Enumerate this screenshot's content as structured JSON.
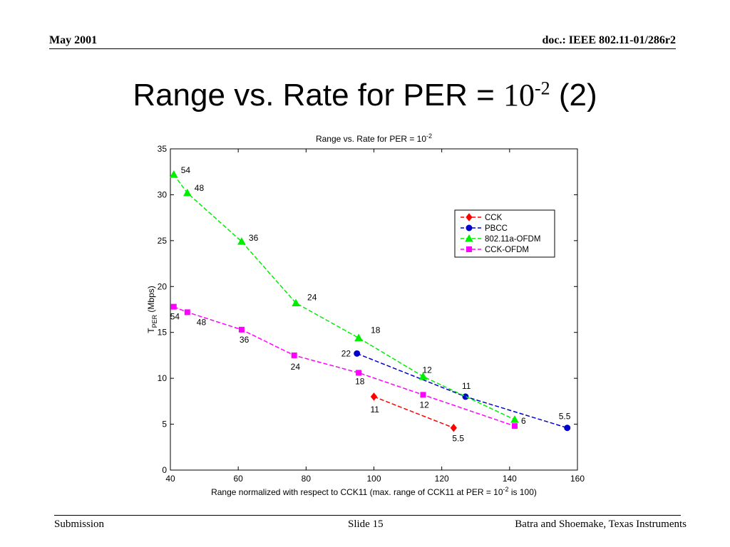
{
  "header": {
    "left": "May 2001",
    "right": "doc.: IEEE 802.11-01/286r2"
  },
  "slide": {
    "title_prefix": "Range vs. Rate for PER = ",
    "title_base": "10",
    "title_exp": "-2",
    "title_suffix": " (2)"
  },
  "footer": {
    "left": "Submission",
    "center": "Slide 15",
    "right": "Batra and Shoemake, Texas Instruments"
  },
  "chart_data": {
    "type": "line",
    "title_prefix": "Range vs. Rate for PER = 10",
    "title_exp": "-2",
    "ylabel_base": "T",
    "ylabel_sub": "PER",
    "ylabel_rest": " (Mbps)",
    "xlabel_prefix": "Range normalized with respect to CCK11 (max. range of CCK11 at PER = 10",
    "xlabel_exp": "-2",
    "xlabel_suffix": " is 100)",
    "xlim": [
      40,
      160
    ],
    "ylim": [
      0,
      35
    ],
    "xticks": [
      40,
      60,
      80,
      100,
      120,
      140,
      160
    ],
    "yticks": [
      0,
      5,
      10,
      15,
      20,
      25,
      30,
      35
    ],
    "grid": false,
    "legend_position": "upper-right",
    "series": [
      {
        "name": "CCK",
        "color": "#ff0000",
        "marker": "diamond",
        "points": [
          {
            "x": 100,
            "y": 8.0,
            "label": "11"
          },
          {
            "x": 123.5,
            "y": 4.6,
            "label": "5.5"
          }
        ]
      },
      {
        "name": "PBCC",
        "color": "#0000cc",
        "marker": "circle",
        "points": [
          {
            "x": 95,
            "y": 12.7,
            "label": "22"
          },
          {
            "x": 127,
            "y": 8.0,
            "label": "11"
          },
          {
            "x": 157,
            "y": 4.6,
            "label": "5.5"
          }
        ]
      },
      {
        "name": "802.11a-OFDM",
        "color": "#00ee00",
        "marker": "triangle",
        "points": [
          {
            "x": 41,
            "y": 32.2,
            "label": "54"
          },
          {
            "x": 45,
            "y": 30.2,
            "label": "48"
          },
          {
            "x": 61,
            "y": 24.9,
            "label": "36"
          },
          {
            "x": 77,
            "y": 18.2,
            "label": "24"
          },
          {
            "x": 95.5,
            "y": 14.4,
            "label": "18"
          },
          {
            "x": 114.5,
            "y": 10.2,
            "label": "12"
          },
          {
            "x": 141.5,
            "y": 5.5,
            "label": "6"
          }
        ]
      },
      {
        "name": "CCK-OFDM",
        "color": "#ff00ff",
        "marker": "square",
        "points": [
          {
            "x": 41,
            "y": 17.8,
            "label": "54"
          },
          {
            "x": 45,
            "y": 17.2,
            "label": "48"
          },
          {
            "x": 61,
            "y": 15.3,
            "label": "36"
          },
          {
            "x": 76.5,
            "y": 12.5,
            "label": "24"
          },
          {
            "x": 95.5,
            "y": 10.6,
            "label": "18"
          },
          {
            "x": 114.5,
            "y": 8.2,
            "label": "12"
          },
          {
            "x": 141.5,
            "y": 4.8,
            "label": ""
          }
        ]
      }
    ]
  }
}
